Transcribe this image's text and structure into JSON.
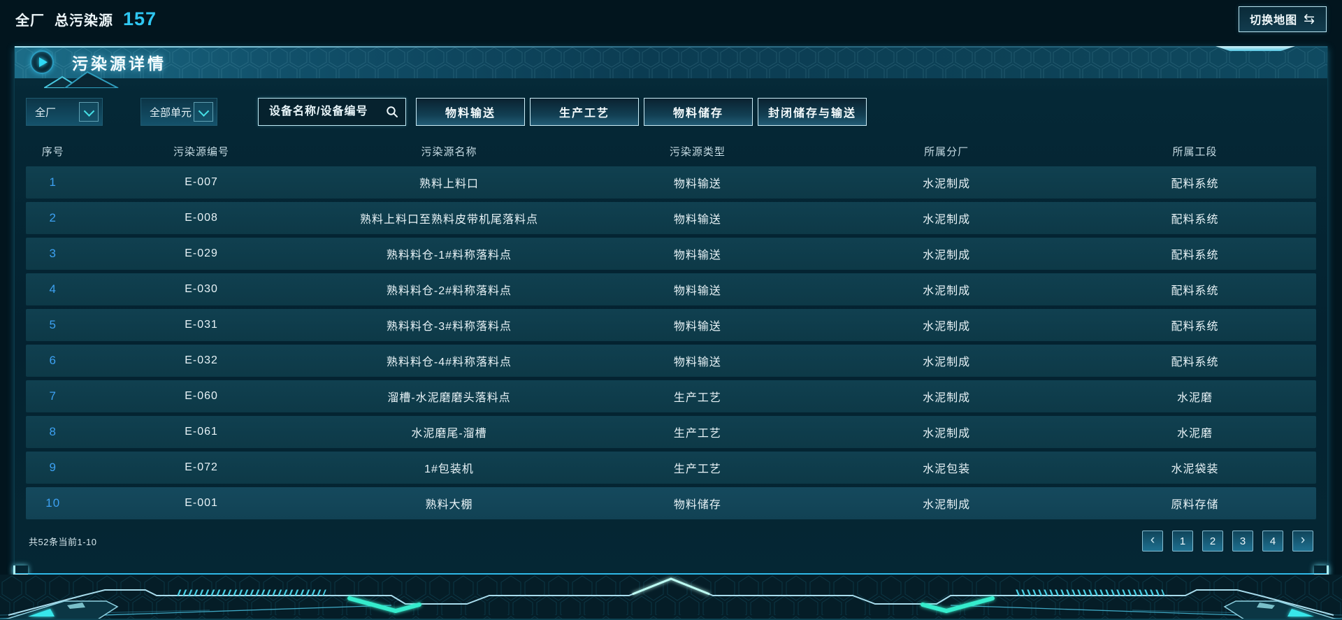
{
  "header": {
    "plant_label": "全厂",
    "total_label": "总污染源",
    "total_value": "157",
    "switch_map_label": "切换地图",
    "switch_icon": "⇆"
  },
  "panel": {
    "title": "污染源详情",
    "filters": {
      "plant_dropdown_value": "全厂",
      "unit_dropdown_value": "全部单元",
      "search_placeholder": "设备名称/设备编号",
      "type_buttons": [
        "物料输送",
        "生产工艺",
        "物料储存",
        "封闭储存与输送"
      ]
    },
    "table": {
      "columns": [
        "序号",
        "污染源编号",
        "污染源名称",
        "污染源类型",
        "所属分厂",
        "所属工段"
      ],
      "rows": [
        [
          "1",
          "E-007",
          "熟料上料口",
          "物料输送",
          "水泥制成",
          "配料系统"
        ],
        [
          "2",
          "E-008",
          "熟料上料口至熟料皮带机尾落料点",
          "物料输送",
          "水泥制成",
          "配料系统"
        ],
        [
          "3",
          "E-029",
          "熟料料仓-1#料称落料点",
          "物料输送",
          "水泥制成",
          "配料系统"
        ],
        [
          "4",
          "E-030",
          "熟料料仓-2#料称落料点",
          "物料输送",
          "水泥制成",
          "配料系统"
        ],
        [
          "5",
          "E-031",
          "熟料料仓-3#料称落料点",
          "物料输送",
          "水泥制成",
          "配料系统"
        ],
        [
          "6",
          "E-032",
          "熟料料仓-4#料称落料点",
          "物料输送",
          "水泥制成",
          "配料系统"
        ],
        [
          "7",
          "E-060",
          "溜槽-水泥磨磨头落料点",
          "生产工艺",
          "水泥制成",
          "水泥磨"
        ],
        [
          "8",
          "E-061",
          "水泥磨尾-溜槽",
          "生产工艺",
          "水泥制成",
          "水泥磨"
        ],
        [
          "9",
          "E-072",
          "1#包装机",
          "生产工艺",
          "水泥包装",
          "水泥袋装"
        ],
        [
          "10",
          "E-001",
          "熟料大棚",
          "物料储存",
          "水泥制成",
          "原料存储"
        ]
      ]
    },
    "footer": {
      "count_text": "共52条当前1-10",
      "prev_icon": "‹",
      "next_icon": "›",
      "pages": [
        "1",
        "2",
        "3",
        "4"
      ]
    }
  },
  "colors": {
    "accent_cyan": "#2fc7f2",
    "row_number_blue": "#3da1f2",
    "panel_border_glow": "#2fb9e8",
    "button_border": "#cdeef8"
  }
}
